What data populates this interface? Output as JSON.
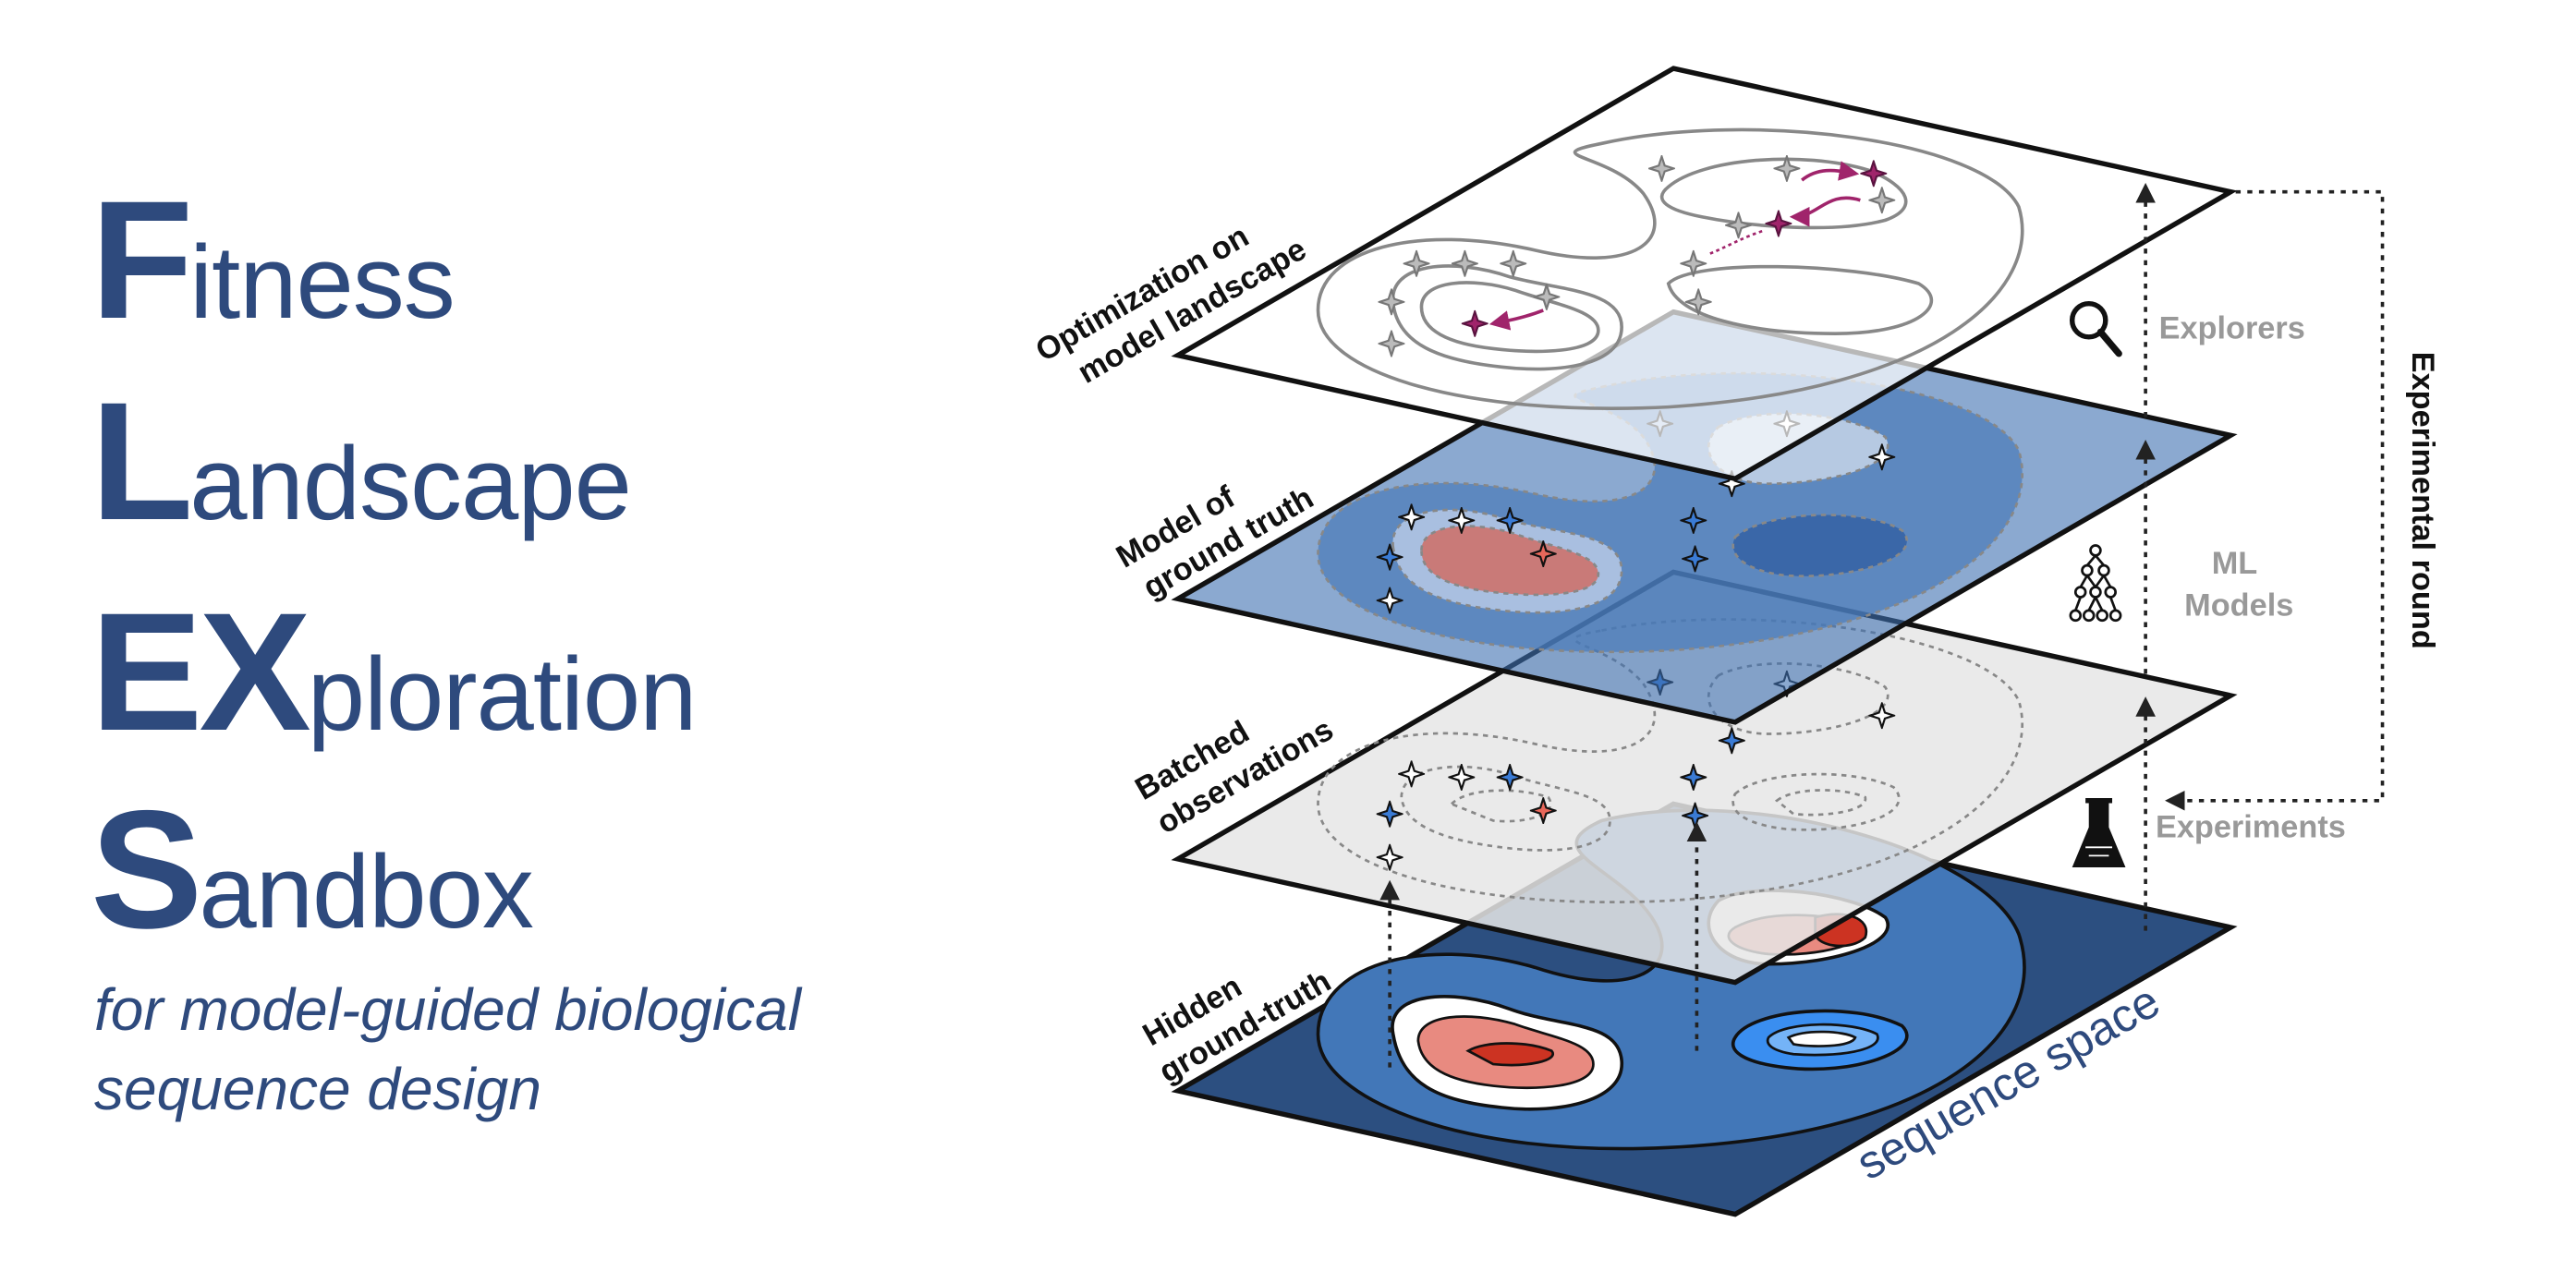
{
  "title": {
    "lines": [
      {
        "cap": "F",
        "rest": "itness"
      },
      {
        "cap": "L",
        "rest": "andscape"
      },
      {
        "cap": "EX",
        "rest": "ploration"
      },
      {
        "cap": "S",
        "rest": "andbox"
      }
    ],
    "subtitle_line1": "for model-guided biological",
    "subtitle_line2": "sequence design"
  },
  "diagram": {
    "layer_labels": {
      "optimization": [
        "Optimization on",
        "model landscape"
      ],
      "model": [
        "Model of",
        "ground truth"
      ],
      "batched": [
        "Batched",
        "observations"
      ],
      "hidden": [
        "Hidden",
        "ground-truth"
      ]
    },
    "side_labels": {
      "explorers": "Explorers",
      "ml_models": [
        "ML",
        "Models"
      ],
      "experiments": "Experiments",
      "experimental_round": "Experimental round"
    },
    "axis_label": "sequence space",
    "icons": [
      "magnifier-icon",
      "neural-network-icon",
      "flask-icon"
    ],
    "colors": {
      "title": "#2e4a7d",
      "layer_dark_blue": "#2c4f80",
      "layer_mid_blue": "#3d6fb0",
      "peak_red": "#cc3322",
      "optimizer_magenta": "#a0246b",
      "marker_blue": "#3a7bd5",
      "gray_label": "#999999"
    }
  }
}
